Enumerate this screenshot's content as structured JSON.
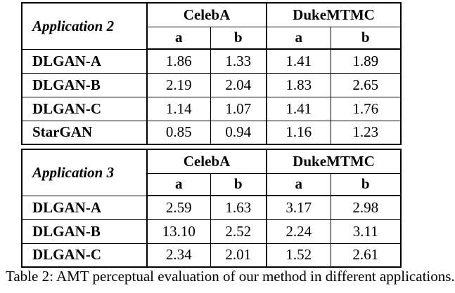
{
  "tables": [
    {
      "application_label": "Application 2",
      "datasets": [
        "CelebA",
        "DukeMTMC"
      ],
      "subcolumns": [
        "a",
        "b",
        "a",
        "b"
      ],
      "rows": [
        {
          "method": "DLGAN-A",
          "values": [
            "1.86",
            "1.33",
            "1.41",
            "1.89"
          ]
        },
        {
          "method": "DLGAN-B",
          "values": [
            "2.19",
            "2.04",
            "1.83",
            "2.65"
          ]
        },
        {
          "method": "DLGAN-C",
          "values": [
            "1.14",
            "1.07",
            "1.41",
            "1.76"
          ]
        },
        {
          "method": "StarGAN",
          "values": [
            "0.85",
            "0.94",
            "1.16",
            "1.23"
          ]
        }
      ]
    },
    {
      "application_label": "Application 3",
      "datasets": [
        "CelebA",
        "DukeMTMC"
      ],
      "subcolumns": [
        "a",
        "b",
        "a",
        "b"
      ],
      "rows": [
        {
          "method": "DLGAN-A",
          "values": [
            "2.59",
            "1.63",
            "3.17",
            "2.98"
          ]
        },
        {
          "method": "DLGAN-B",
          "values": [
            "13.10",
            "2.52",
            "2.24",
            "3.11"
          ]
        },
        {
          "method": "DLGAN-C",
          "values": [
            "2.34",
            "2.01",
            "1.52",
            "2.61"
          ]
        }
      ]
    }
  ],
  "caption": "Table 2: AMT perceptual evaluation of our method in different applications."
}
